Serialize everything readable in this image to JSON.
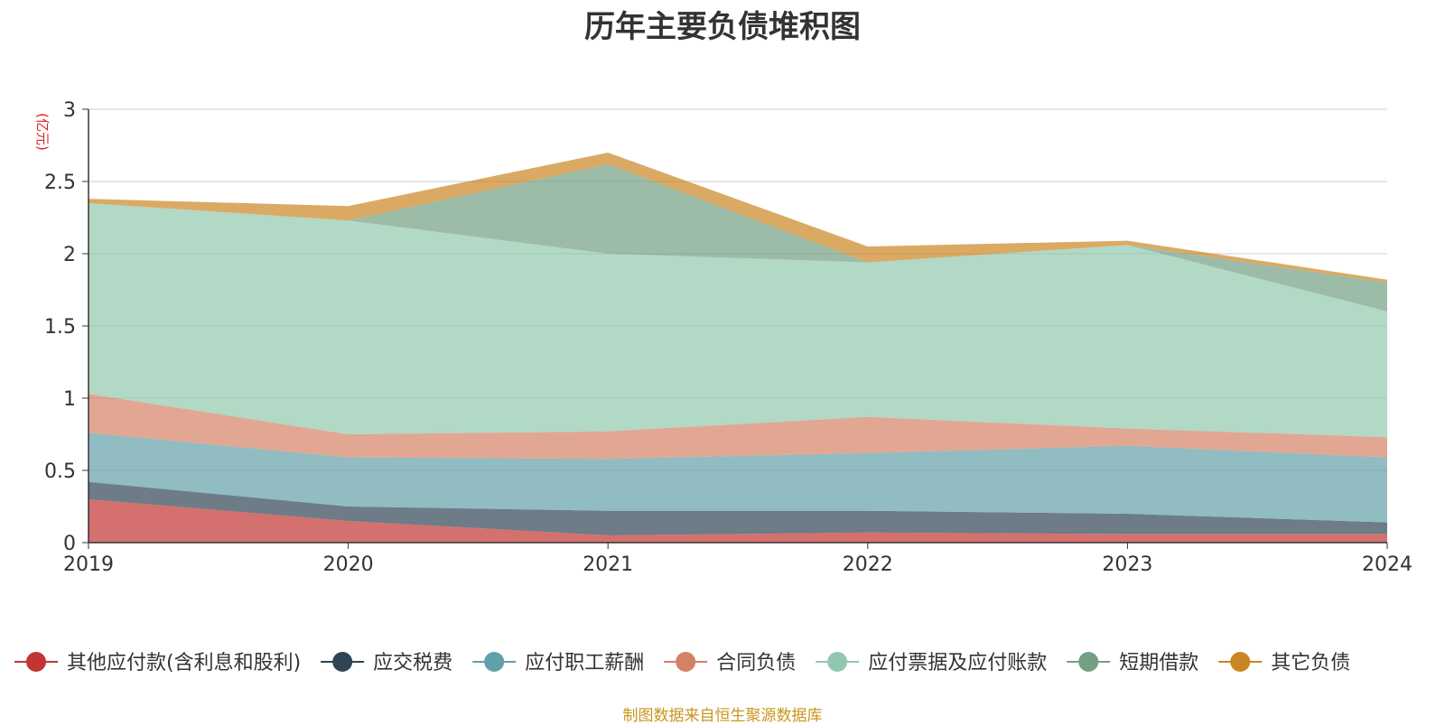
{
  "chart_data": {
    "type": "area",
    "stacked": true,
    "title": "历年主要负债堆积图",
    "ylabel": "(亿元)",
    "xlabel": "",
    "x": [
      "2019",
      "2020",
      "2021",
      "2022",
      "2023",
      "2024"
    ],
    "ylim": [
      0,
      3
    ],
    "yticks": [
      "0",
      "0.5",
      "1",
      "1.5",
      "2",
      "2.5",
      "3"
    ],
    "grid": true,
    "legend_position": "bottom",
    "series": [
      {
        "name": "其他应付款(含利息和股利)",
        "color": "#c23531",
        "values": [
          0.3,
          0.15,
          0.05,
          0.07,
          0.06,
          0.06
        ]
      },
      {
        "name": "应交税费",
        "color": "#2f4554",
        "values": [
          0.12,
          0.1,
          0.17,
          0.15,
          0.14,
          0.08
        ]
      },
      {
        "name": "应付职工薪酬",
        "color": "#61a0a8",
        "values": [
          0.34,
          0.34,
          0.36,
          0.4,
          0.47,
          0.45
        ]
      },
      {
        "name": "合同负债",
        "color": "#d48265",
        "values": [
          0.27,
          0.16,
          0.19,
          0.25,
          0.12,
          0.14
        ]
      },
      {
        "name": "应付票据及应付账款",
        "color": "#91c7ae",
        "values": [
          1.32,
          1.48,
          1.23,
          1.07,
          1.27,
          0.87
        ]
      },
      {
        "name": "短期借款",
        "color": "#749f83",
        "values": [
          0.0,
          0.0,
          0.62,
          0.0,
          0.0,
          0.2
        ]
      },
      {
        "name": "其它负债",
        "color": "#ca8622",
        "values": [
          0.03,
          0.1,
          0.08,
          0.11,
          0.03,
          0.02
        ]
      }
    ]
  },
  "source_note": "制图数据来自恒生聚源数据库"
}
